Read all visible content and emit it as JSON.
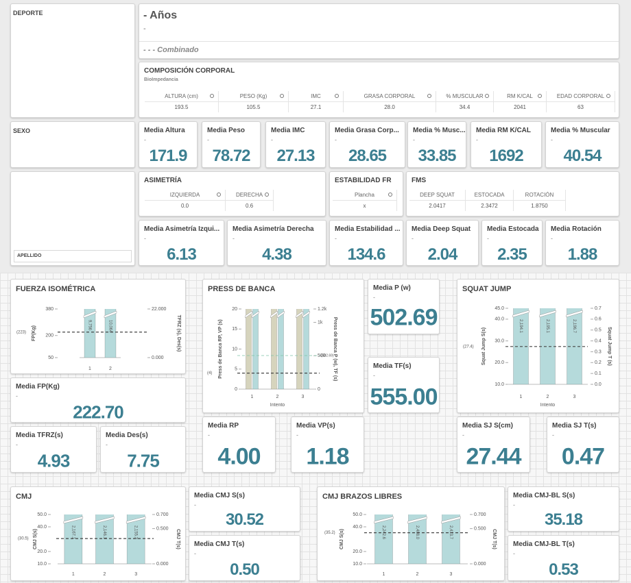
{
  "filters": [
    {
      "title": "DEPORTE"
    },
    {
      "title": "SEXO"
    },
    {
      "title": "APELLIDO"
    }
  ],
  "header": {
    "title": "- Años",
    "subtitle": "-",
    "combined": "- - - Combinado"
  },
  "composition": {
    "title": "COMPOSICIÓN CORPORAL",
    "subtitle": "BioImpedancia",
    "columns": [
      "ALTURA (cm)",
      "PESO (Kg)",
      "IMC",
      "GRASA CORPORAL",
      "% MUSCULAR",
      "RM K/CAL",
      "EDAD CORPORAL"
    ],
    "values": [
      "193.5",
      "105.5",
      "27.1",
      "28.0",
      "34.4",
      "2041",
      "63"
    ]
  },
  "asymmetry": {
    "title": "ASIMETRÍA",
    "columns": [
      "IZQUIERDA",
      "DERECHA"
    ],
    "values": [
      "0.0",
      "0.6"
    ]
  },
  "stability": {
    "title": "ESTABILIDAD FR",
    "columns": [
      "Plancha"
    ],
    "values": [
      "x"
    ]
  },
  "fms": {
    "title": "FMS",
    "columns": [
      "DEEP SQUAT",
      "ESTOCADA",
      "ROTACIÓN"
    ],
    "values": [
      "2.0417",
      "2.3472",
      "1.8750"
    ]
  },
  "kpis": [
    {
      "title": "Media Altura",
      "subtitle": "-",
      "value": "171.9"
    },
    {
      "title": "Media Peso",
      "subtitle": "-",
      "value": "78.72"
    },
    {
      "title": "Media IMC",
      "subtitle": "-",
      "value": "27.13"
    },
    {
      "title": "Media Grasa Corp...",
      "subtitle": "-",
      "value": "28.65"
    },
    {
      "title": "Media % Musc...",
      "subtitle": "-",
      "value": "33.85"
    },
    {
      "title": "Media RM K/CAL",
      "subtitle": "-",
      "value": "1692"
    },
    {
      "title": "Media % Muscular",
      "subtitle": "-",
      "value": "40.54"
    },
    {
      "title": "Media Asimetría Izqui...",
      "subtitle": "-",
      "value": "6.13"
    },
    {
      "title": "Media Asimetría Derecha",
      "subtitle": "-",
      "value": "4.38"
    },
    {
      "title": "Media Estabilidad ...",
      "subtitle": "-",
      "value": "134.6"
    },
    {
      "title": "Media Deep Squat",
      "subtitle": "-",
      "value": "2.04"
    },
    {
      "title": "Media Estocada",
      "subtitle": "-",
      "value": "2.35"
    },
    {
      "title": "Media Rotación",
      "subtitle": "-",
      "value": "1.88"
    },
    {
      "title": "Media FP(Kg)",
      "subtitle": "-",
      "value": "222.70"
    },
    {
      "title": "Media TFRZ(s)",
      "subtitle": "-",
      "value": "4.93"
    },
    {
      "title": "Media Des(s)",
      "subtitle": "-",
      "value": "7.75"
    },
    {
      "title": "Media P (w)",
      "subtitle": "-",
      "value": "502.69"
    },
    {
      "title": "Media TF(s)",
      "subtitle": "-",
      "value": "555.00"
    },
    {
      "title": "Media RP",
      "subtitle": "-",
      "value": "4.00"
    },
    {
      "title": "Media VP(s)",
      "subtitle": "-",
      "value": "1.18"
    },
    {
      "title": "Media SJ S(cm)",
      "subtitle": "-",
      "value": "27.44"
    },
    {
      "title": "Media SJ T(s)",
      "subtitle": "-",
      "value": "0.47"
    },
    {
      "title": "Media CMJ S(s)",
      "subtitle": "-",
      "value": "30.52"
    },
    {
      "title": "Media CMJ T(s)",
      "subtitle": "-",
      "value": "0.50"
    },
    {
      "title": "Media CMJ-BL S(s)",
      "subtitle": "-",
      "value": "35.18"
    },
    {
      "title": "Media CMJ-BL T(s)",
      "subtitle": "-",
      "value": "0.53"
    }
  ],
  "chart_data": [
    {
      "type": "bar",
      "title": "FUERZA ISOMÉTRICA",
      "y_label": "FP(Kg)",
      "y2_label": "TFRZ (s), Des(s)",
      "categories": [
        "1",
        "2"
      ],
      "series": [
        {
          "color": "#b5dadb",
          "values": [
            9756,
            10064
          ],
          "value_labels": [
            "9,756",
            "10,064"
          ]
        }
      ],
      "ylim": [
        50,
        380
      ],
      "yticks": [
        50,
        200,
        380
      ],
      "y2lim": [
        0,
        22
      ],
      "y2ticks": [
        {
          "value": 0,
          "label": "0.000"
        },
        {
          "value": 22,
          "label": "22.000"
        }
      ],
      "reference_lines": [
        {
          "value": 223,
          "label": "(223)"
        }
      ]
    },
    {
      "type": "bar",
      "title": "PRESS DE BANCA",
      "y_label": "Press de Banca RP, VP (s)",
      "y2_label": "Press de Banca P (w), TF (s)",
      "x_label": "Intento",
      "categories": [
        "1",
        "2",
        "3"
      ],
      "series": [
        {
          "color": "#d6d4bd",
          "values": [
            21,
            21,
            21
          ]
        },
        {
          "color": "#b5dadb",
          "values": [
            1250,
            1250,
            1250
          ],
          "axis": "y2"
        }
      ],
      "ylim": [
        0,
        20
      ],
      "yticks": [
        0,
        5,
        10,
        15,
        20
      ],
      "y2lim": [
        0,
        1200
      ],
      "y2ticks": [
        0,
        500,
        {
          "value": 1000,
          "label": "1k"
        },
        {
          "value": 1200,
          "label": "1.2k"
        }
      ],
      "reference_lines": [
        {
          "value": 4,
          "label": "(4)"
        },
        {
          "value": 502.69,
          "label": "(502.69)",
          "axis": "y2",
          "color": "#7fc3a6"
        }
      ]
    },
    {
      "type": "bar",
      "title": "SQUAT JUMP",
      "y_label": "Squat Jump S(s)",
      "y2_label": "Squat Jump T (s)",
      "x_label": "Intento",
      "categories": [
        "1",
        "2",
        "3"
      ],
      "series": [
        {
          "color": "#b5dadb",
          "values": [
            2194.1,
            2195.1,
            2196.7
          ],
          "value_labels": [
            "2,194.1",
            "2,195.1",
            "2,196.7"
          ]
        }
      ],
      "ylim": [
        10,
        45
      ],
      "yticks": [
        {
          "value": 10,
          "label": "10.0"
        },
        {
          "value": 20,
          "label": "20.0"
        },
        {
          "value": 30,
          "label": "30.0"
        },
        {
          "value": 40,
          "label": "40.0"
        },
        {
          "value": 45,
          "label": "45.0"
        }
      ],
      "y2lim": [
        0,
        0.7
      ],
      "y2ticks": [
        {
          "value": 0,
          "label": "0.0"
        },
        0.1,
        0.2,
        0.3,
        0.4,
        0.5,
        0.6,
        0.7
      ],
      "reference_lines": [
        {
          "value": 27.4,
          "label": "(27.4)"
        }
      ]
    },
    {
      "type": "bar",
      "title": "CMJ",
      "y_label": "CMJ S(s)",
      "y2_label": "CMJ T(s)",
      "categories": [
        "1",
        "2",
        "3"
      ],
      "series": [
        {
          "color": "#b5dadb",
          "values": [
            2167.1,
            2146.1,
            2155.3
          ],
          "value_labels": [
            "2,167.1",
            "2,146.1",
            "2,155.3"
          ]
        }
      ],
      "ylim": [
        10,
        50
      ],
      "yticks": [
        {
          "value": 10,
          "label": "10.0"
        },
        {
          "value": 20,
          "label": "20.0"
        },
        {
          "value": 40,
          "label": "40.0"
        },
        {
          "value": 50,
          "label": "50.0"
        }
      ],
      "y2lim": [
        0,
        0.7
      ],
      "y2ticks": [
        {
          "value": 0,
          "label": "0.000"
        },
        {
          "value": 0.5,
          "label": "0.500"
        },
        {
          "value": 0.7,
          "label": "0.700"
        }
      ],
      "reference_lines": [
        {
          "value": 30.5,
          "label": "(30.5)"
        }
      ]
    },
    {
      "type": "bar",
      "title": "CMJ BRAZOS LIBRES",
      "y_label": "CMJ S(s)",
      "y2_label": "CMJ T(s)",
      "categories": [
        "1",
        "2",
        "3"
      ],
      "series": [
        {
          "color": "#b5dadb",
          "values": [
            2242.6,
            2488.0,
            2413.7
          ],
          "value_labels": [
            "2,242.6",
            "2,488.0",
            "2,413.7"
          ]
        }
      ],
      "ylim": [
        10,
        50
      ],
      "yticks": [
        {
          "value": 10,
          "label": "10.0"
        },
        {
          "value": 20,
          "label": "20.0"
        },
        {
          "value": 40,
          "label": "40.0"
        },
        {
          "value": 50,
          "label": "50.0"
        }
      ],
      "y2lim": [
        0,
        0.7
      ],
      "y2ticks": [
        {
          "value": 0,
          "label": "0.000"
        },
        {
          "value": 0.5,
          "label": "0.500"
        },
        {
          "value": 0.7,
          "label": "0.700"
        }
      ],
      "reference_lines": [
        {
          "value": 35.2,
          "label": "(35.2)"
        }
      ]
    }
  ]
}
